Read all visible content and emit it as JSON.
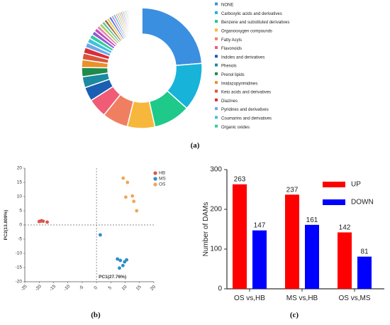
{
  "chart_data": [
    {
      "type": "pie",
      "panel_label": "(a)",
      "legend_placement": "right",
      "legend": [
        {
          "name": "NONE",
          "color": "#3b8fe0"
        },
        {
          "name": "Carboxylic acids and derivatives",
          "color": "#17b3d9"
        },
        {
          "name": "Benzene and substituted derivatives",
          "color": "#1ec98a"
        },
        {
          "name": "Organooxygen compounds",
          "color": "#f6b73c"
        },
        {
          "name": "Fatty Acyls",
          "color": "#f07f62"
        },
        {
          "name": "Flavonoids",
          "color": "#f05b75"
        },
        {
          "name": "Indoles and derivatives",
          "color": "#1a5fb4"
        },
        {
          "name": "Phenols",
          "color": "#1b8aa0"
        },
        {
          "name": "Prenol lipids",
          "color": "#1f8a4c"
        },
        {
          "name": "Imidazopyrimidines",
          "color": "#e8922a"
        },
        {
          "name": "Keto acids and derivatives",
          "color": "#d9553a"
        },
        {
          "name": "Diazines",
          "color": "#d92b3a"
        },
        {
          "name": "Pyridines and derivatives",
          "color": "#6fa8e8"
        },
        {
          "name": "Coumarins and derivatives",
          "color": "#3fc0e0"
        },
        {
          "name": "Organic oxides",
          "color": "#2fcf9a"
        }
      ],
      "values": [
        24,
        13,
        10,
        7.5,
        7.0,
        5.2,
        3.8,
        3.0,
        2.5,
        2.1,
        1.8,
        1.6,
        1.4,
        1.3,
        1.2,
        1.1,
        1.0,
        0.95,
        0.9,
        0.85,
        0.8,
        0.75,
        0.7,
        0.65,
        0.6,
        0.55,
        0.5,
        0.5,
        0.45,
        0.45,
        0.4,
        0.4,
        0.35,
        0.35,
        0.3,
        0.3,
        0.3,
        0.25,
        0.25,
        0.25,
        0.2,
        0.2,
        0.2,
        0.2,
        0.15,
        0.15,
        0.15,
        0.15,
        0.1,
        0.1,
        0.1,
        0.1
      ],
      "extra_colors": [
        "#8e5bd6",
        "#c94bb8",
        "#e08bb3",
        "#a3d25c",
        "#6bc4a6",
        "#9b6a3a",
        "#e6c84a",
        "#4a6fe0",
        "#b38de8",
        "#52b9c9",
        "#f09a9a",
        "#7fd16b",
        "#d8a35c",
        "#6c8fd1",
        "#e47cc7",
        "#5dd3c0",
        "#c9b06a",
        "#9ac8f0",
        "#f4c0d0",
        "#bfe39a"
      ]
    },
    {
      "type": "scatter",
      "panel_label": "(b)",
      "xlabel": "PC1(27.76%)",
      "ylabel": "PC2(13.809%)",
      "xlim": [
        -25,
        20
      ],
      "ylim": [
        -20,
        20
      ],
      "xticks": [
        -25,
        -20,
        -15,
        -10,
        -5,
        0,
        5,
        10,
        15,
        20
      ],
      "yticks": [
        -20,
        -15,
        -10,
        -5,
        0,
        5,
        10,
        15,
        20
      ],
      "legend_placement": "top-right",
      "series": [
        {
          "name": "HB",
          "color": "#d8584b",
          "points": [
            [
              -20,
              1.2
            ],
            [
              -19.2,
              1.5
            ],
            [
              -18.6,
              1.3
            ],
            [
              -17.2,
              1.0
            ],
            [
              -19.6,
              1.3
            ]
          ]
        },
        {
          "name": "MS",
          "color": "#2a8ec6",
          "points": [
            [
              1.3,
              -3.5
            ],
            [
              7.3,
              -12.0
            ],
            [
              8.3,
              -12.5
            ],
            [
              9.8,
              -13.0
            ],
            [
              10.5,
              -12.3
            ],
            [
              9.2,
              -14.3
            ],
            [
              8.0,
              -15.2
            ]
          ]
        },
        {
          "name": "OS",
          "color": "#f2a553",
          "points": [
            [
              9.3,
              16.5
            ],
            [
              10.8,
              15.0
            ],
            [
              10.2,
              9.8
            ],
            [
              12.5,
              10.2
            ],
            [
              13.0,
              8.3
            ],
            [
              14.0,
              5.0
            ]
          ]
        }
      ]
    },
    {
      "type": "bar",
      "panel_label": "(c)",
      "ylabel": "Number of DAMs",
      "categories": [
        "OS vs,HB",
        "MS vs,HB",
        "OS vs,MS"
      ],
      "ylim": [
        0,
        300
      ],
      "yticks": [
        0,
        100,
        200,
        300
      ],
      "legend_placement": "top-right",
      "series": [
        {
          "name": "UP",
          "color": "#ff0000",
          "values": [
            263,
            237,
            142
          ]
        },
        {
          "name": "DOWN",
          "color": "#0000ff",
          "values": [
            147,
            161,
            81
          ]
        }
      ]
    }
  ]
}
